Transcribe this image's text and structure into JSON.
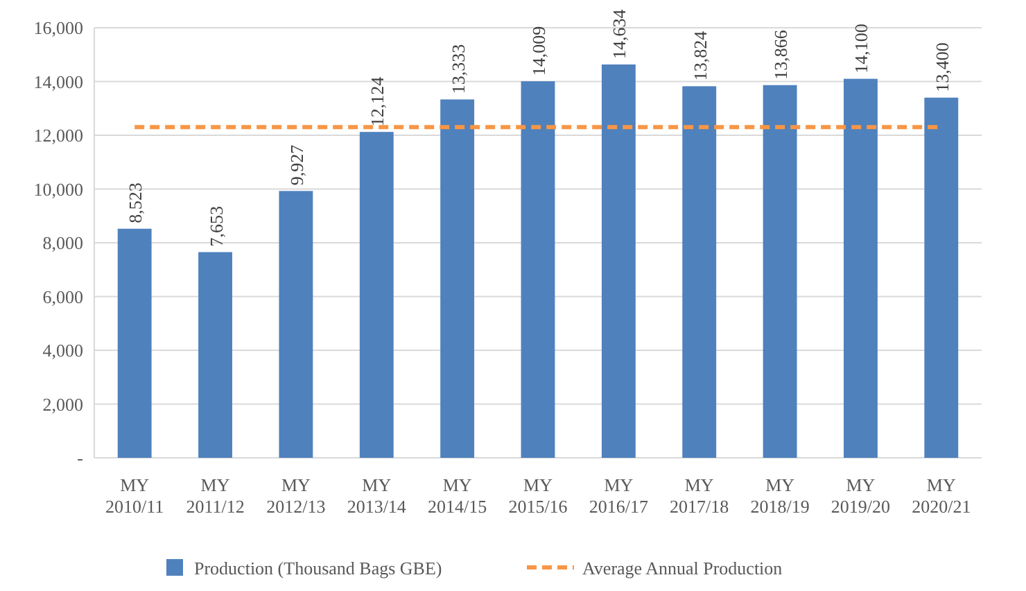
{
  "chart_data": {
    "type": "bar",
    "categories": [
      "MY 2010/11",
      "MY 2011/12",
      "MY 2012/13",
      "MY 2013/14",
      "MY 2014/15",
      "MY 2015/16",
      "MY 2016/17",
      "MY 2017/18",
      "MY 2018/19",
      "MY 2019/20",
      "MY 2020/21"
    ],
    "series": [
      {
        "name": "Production (Thousand Bags GBE)",
        "color": "#4f81bd",
        "values": [
          8523,
          7653,
          9927,
          12124,
          13333,
          14009,
          14634,
          13824,
          13866,
          14100,
          13400
        ],
        "value_labels": [
          "8,523",
          "7,653",
          "9,927",
          "12,124",
          "13,333",
          "14,009",
          "14,634",
          "13,824",
          "13,866",
          "14,100",
          "13,400"
        ]
      },
      {
        "name": "Average Annual Production",
        "type": "line",
        "color": "#f79646",
        "line_style": "dashed",
        "marker": "none",
        "values": [
          12300,
          12300,
          12300,
          12300,
          12300,
          12300,
          12300,
          12300,
          12300,
          12300,
          12300
        ]
      }
    ],
    "ylim": [
      0,
      16000
    ],
    "yticks": [
      {
        "value": 0,
        "label": "-"
      },
      {
        "value": 2000,
        "label": "2,000"
      },
      {
        "value": 4000,
        "label": "4,000"
      },
      {
        "value": 6000,
        "label": "6,000"
      },
      {
        "value": 8000,
        "label": "8,000"
      },
      {
        "value": 10000,
        "label": "10,000"
      },
      {
        "value": 12000,
        "label": "12,000"
      },
      {
        "value": 14000,
        "label": "14,000"
      },
      {
        "value": 16000,
        "label": "16,000"
      }
    ],
    "grid": "y",
    "legend": "bottom"
  }
}
